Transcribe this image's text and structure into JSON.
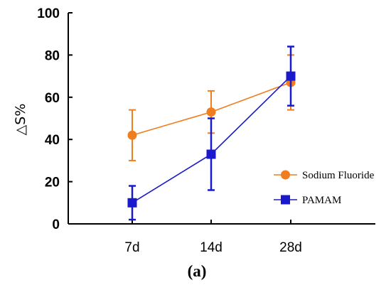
{
  "chart_data": {
    "type": "line",
    "categories": [
      "7d",
      "14d",
      "28d"
    ],
    "ylabel": "△S%",
    "ylim": [
      0,
      100
    ],
    "yticks": [
      0,
      20,
      40,
      60,
      80,
      100
    ],
    "legend_position": "right",
    "panel_label": "(a)",
    "series": [
      {
        "name": "Sodium Fluoride",
        "color": "#f07d1e",
        "marker": "circle",
        "values": [
          42,
          53,
          67
        ],
        "err": [
          12,
          10,
          13
        ]
      },
      {
        "name": "PAMAM",
        "color": "#1a1acc",
        "marker": "square",
        "values": [
          10,
          33,
          70
        ],
        "err": [
          8,
          17,
          14
        ]
      }
    ]
  }
}
